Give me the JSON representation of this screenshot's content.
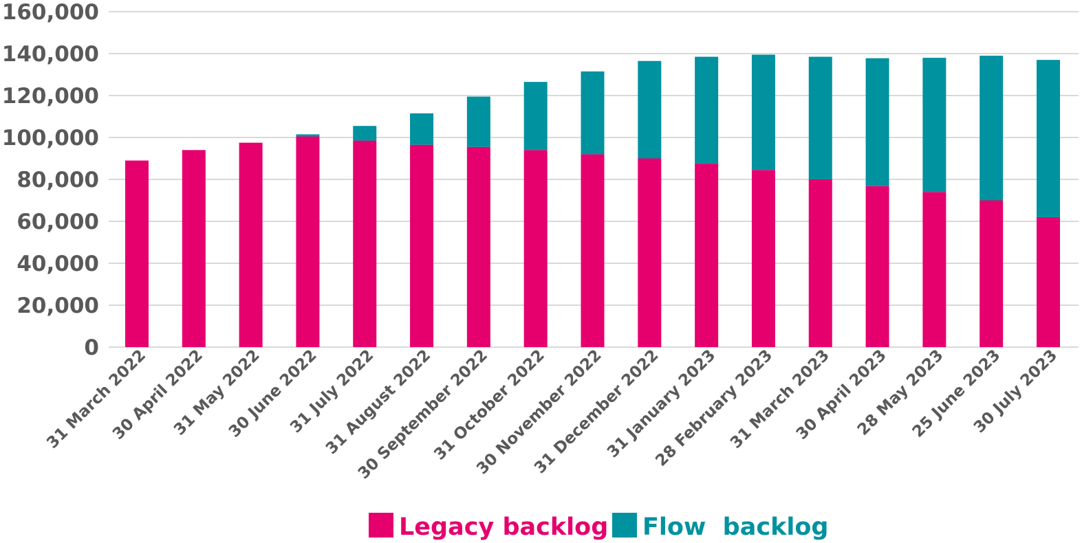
{
  "chart_data": {
    "type": "bar",
    "stacked": true,
    "categories": [
      "31 March 2022",
      "30 April 2022",
      "31 May 2022",
      "30 June 2022",
      "31 July 2022",
      "31 August 2022",
      "30 September 2022",
      "31 October 2022",
      "30 November 2022",
      "31 December 2022",
      "31 January 2023",
      "28 February 2023",
      "31 March 2023",
      "30 April 2023",
      "28 May 2023",
      "25 June 2023",
      "30 July 2023"
    ],
    "series": [
      {
        "name": "Legacy backlog",
        "color": "#E6006E",
        "values": [
          89000,
          94000,
          97500,
          100500,
          98500,
          96500,
          95500,
          94000,
          92000,
          90000,
          87500,
          84500,
          80000,
          76800,
          74000,
          70000,
          62000
        ]
      },
      {
        "name": "Flow  backlog",
        "color": "#00929F",
        "values": [
          0,
          0,
          0,
          1000,
          7000,
          15000,
          24000,
          32500,
          39500,
          46500,
          51000,
          55000,
          58500,
          61000,
          64000,
          69000,
          75000
        ]
      }
    ],
    "ylim": [
      0,
      160000
    ],
    "yticks": [
      "0",
      "20,000",
      "40,000",
      "60,000",
      "80,000",
      "100,000",
      "120,000",
      "140,000",
      "160,000"
    ],
    "grid": true,
    "legend_position": "bottom",
    "title": "",
    "xlabel": "",
    "ylabel": ""
  }
}
